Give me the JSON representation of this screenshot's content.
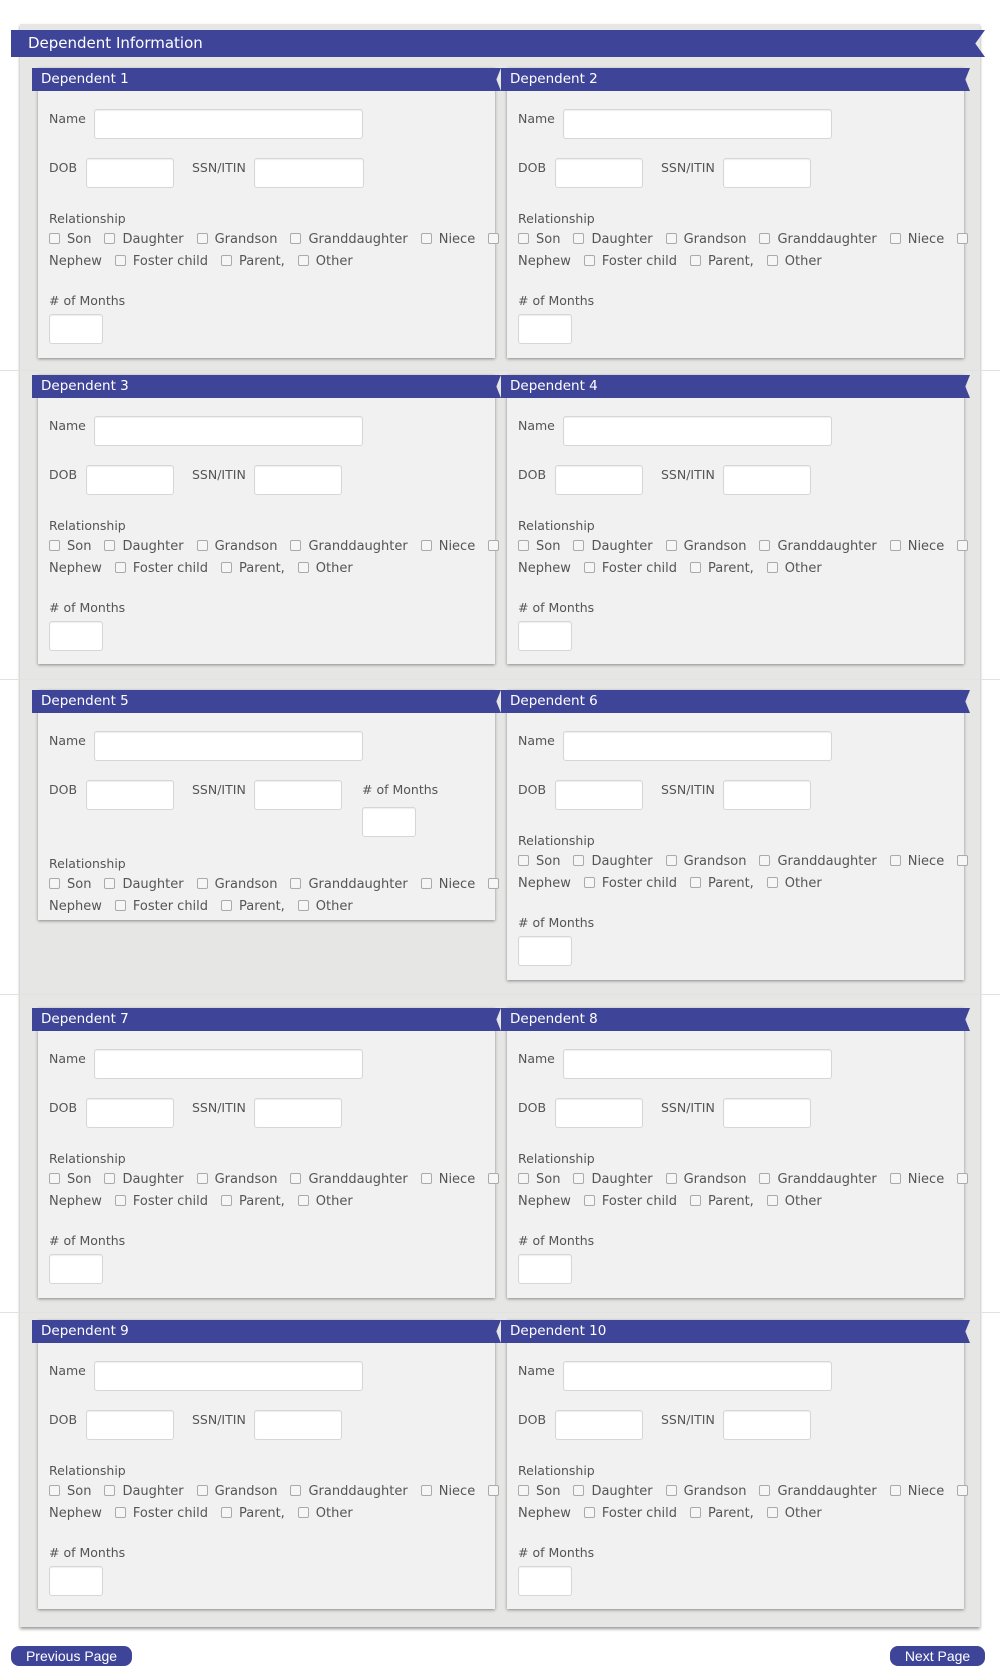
{
  "section_title": "Dependent Information",
  "labels": {
    "name": "Name",
    "dob": "DOB",
    "ssn": "SSN/ITIN",
    "relationship": "Relationship",
    "months": "# of Months"
  },
  "relationship_options": [
    "Son",
    "Daughter",
    "Grandson",
    "Granddaughter",
    "Niece",
    "Nephew",
    "Foster child",
    "Parent,",
    "Other"
  ],
  "dependents": [
    {
      "title": "Dependent 1"
    },
    {
      "title": "Dependent 2"
    },
    {
      "title": "Dependent 3"
    },
    {
      "title": "Dependent 4"
    },
    {
      "title": "Dependent 5"
    },
    {
      "title": "Dependent 6"
    },
    {
      "title": "Dependent 7"
    },
    {
      "title": "Dependent 8"
    },
    {
      "title": "Dependent 9"
    },
    {
      "title": "Dependent 10"
    }
  ],
  "nav": {
    "previous": "Previous Page",
    "next": "Next Page"
  },
  "colors": {
    "accent": "#3e4498",
    "panel": "#e6e6e4",
    "card": "#f1f1f1"
  }
}
